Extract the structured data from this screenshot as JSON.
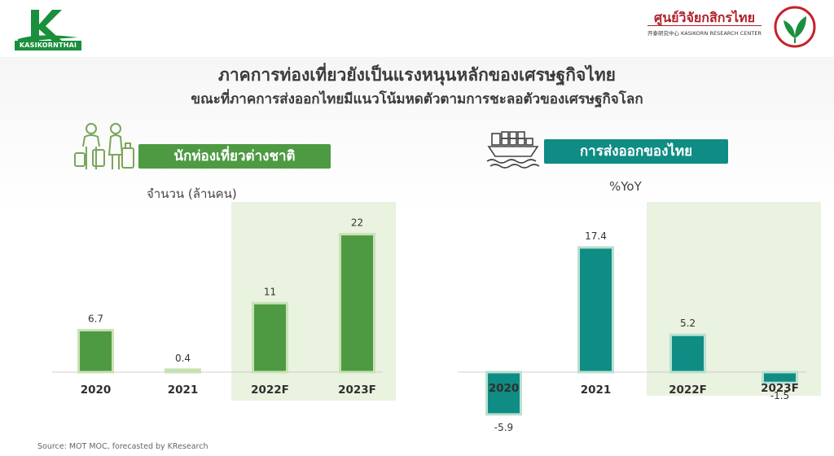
{
  "header": {
    "logo_left_text": "KASIKORNTHAI",
    "logo_right_title": "ศูนย์วิจัยกสิกรไทย",
    "logo_right_sub": "开泰研究中心 KASIKORN RESEARCH CENTER"
  },
  "title": "ภาคการท่องเที่ยวยังเป็นแรงหนุนหลักของเศรษฐกิจไทย",
  "subtitle": "ขณะที่ภาคการส่งออกไทยมีแนวโน้มหดตัวตามการชะลอตัวของเศรษฐกิจโลก",
  "source": "Source: MOT MOC, forecasted by KResearch",
  "colors": {
    "tourism_bar": "#4e9a43",
    "tourism_bar_edge": "#c9e2b6",
    "export_bar": "#0f8c83",
    "export_bar_edge": "#b9e0d2",
    "forecast_bg": "#eaf2e0"
  },
  "chart_data": [
    {
      "type": "bar",
      "title": "นักท่องเที่ยวต่างชาติ",
      "ylabel": "จำนวน (ล้านคน)",
      "categories": [
        "2020",
        "2021",
        "2022F",
        "2023F"
      ],
      "values": [
        6.7,
        0.4,
        11,
        22
      ],
      "value_labels": [
        "6.7",
        "0.4",
        "11",
        "22"
      ],
      "forecast_categories": [
        "2022F",
        "2023F"
      ],
      "ylim": [
        0,
        25
      ],
      "grid": false,
      "icon": "travelers-icon"
    },
    {
      "type": "bar",
      "title": "การส่งออกของไทย",
      "ylabel": "%YoY",
      "categories": [
        "2020",
        "2021",
        "2022F",
        "2023F"
      ],
      "values": [
        -5.9,
        17.4,
        5.2,
        -1.5
      ],
      "value_labels": [
        "-5.9",
        "17.4",
        "5.2",
        "-1.5"
      ],
      "forecast_categories": [
        "2022F",
        "2023F"
      ],
      "ylim": [
        -8,
        20
      ],
      "grid": false,
      "icon": "cargo-ship-icon"
    }
  ]
}
